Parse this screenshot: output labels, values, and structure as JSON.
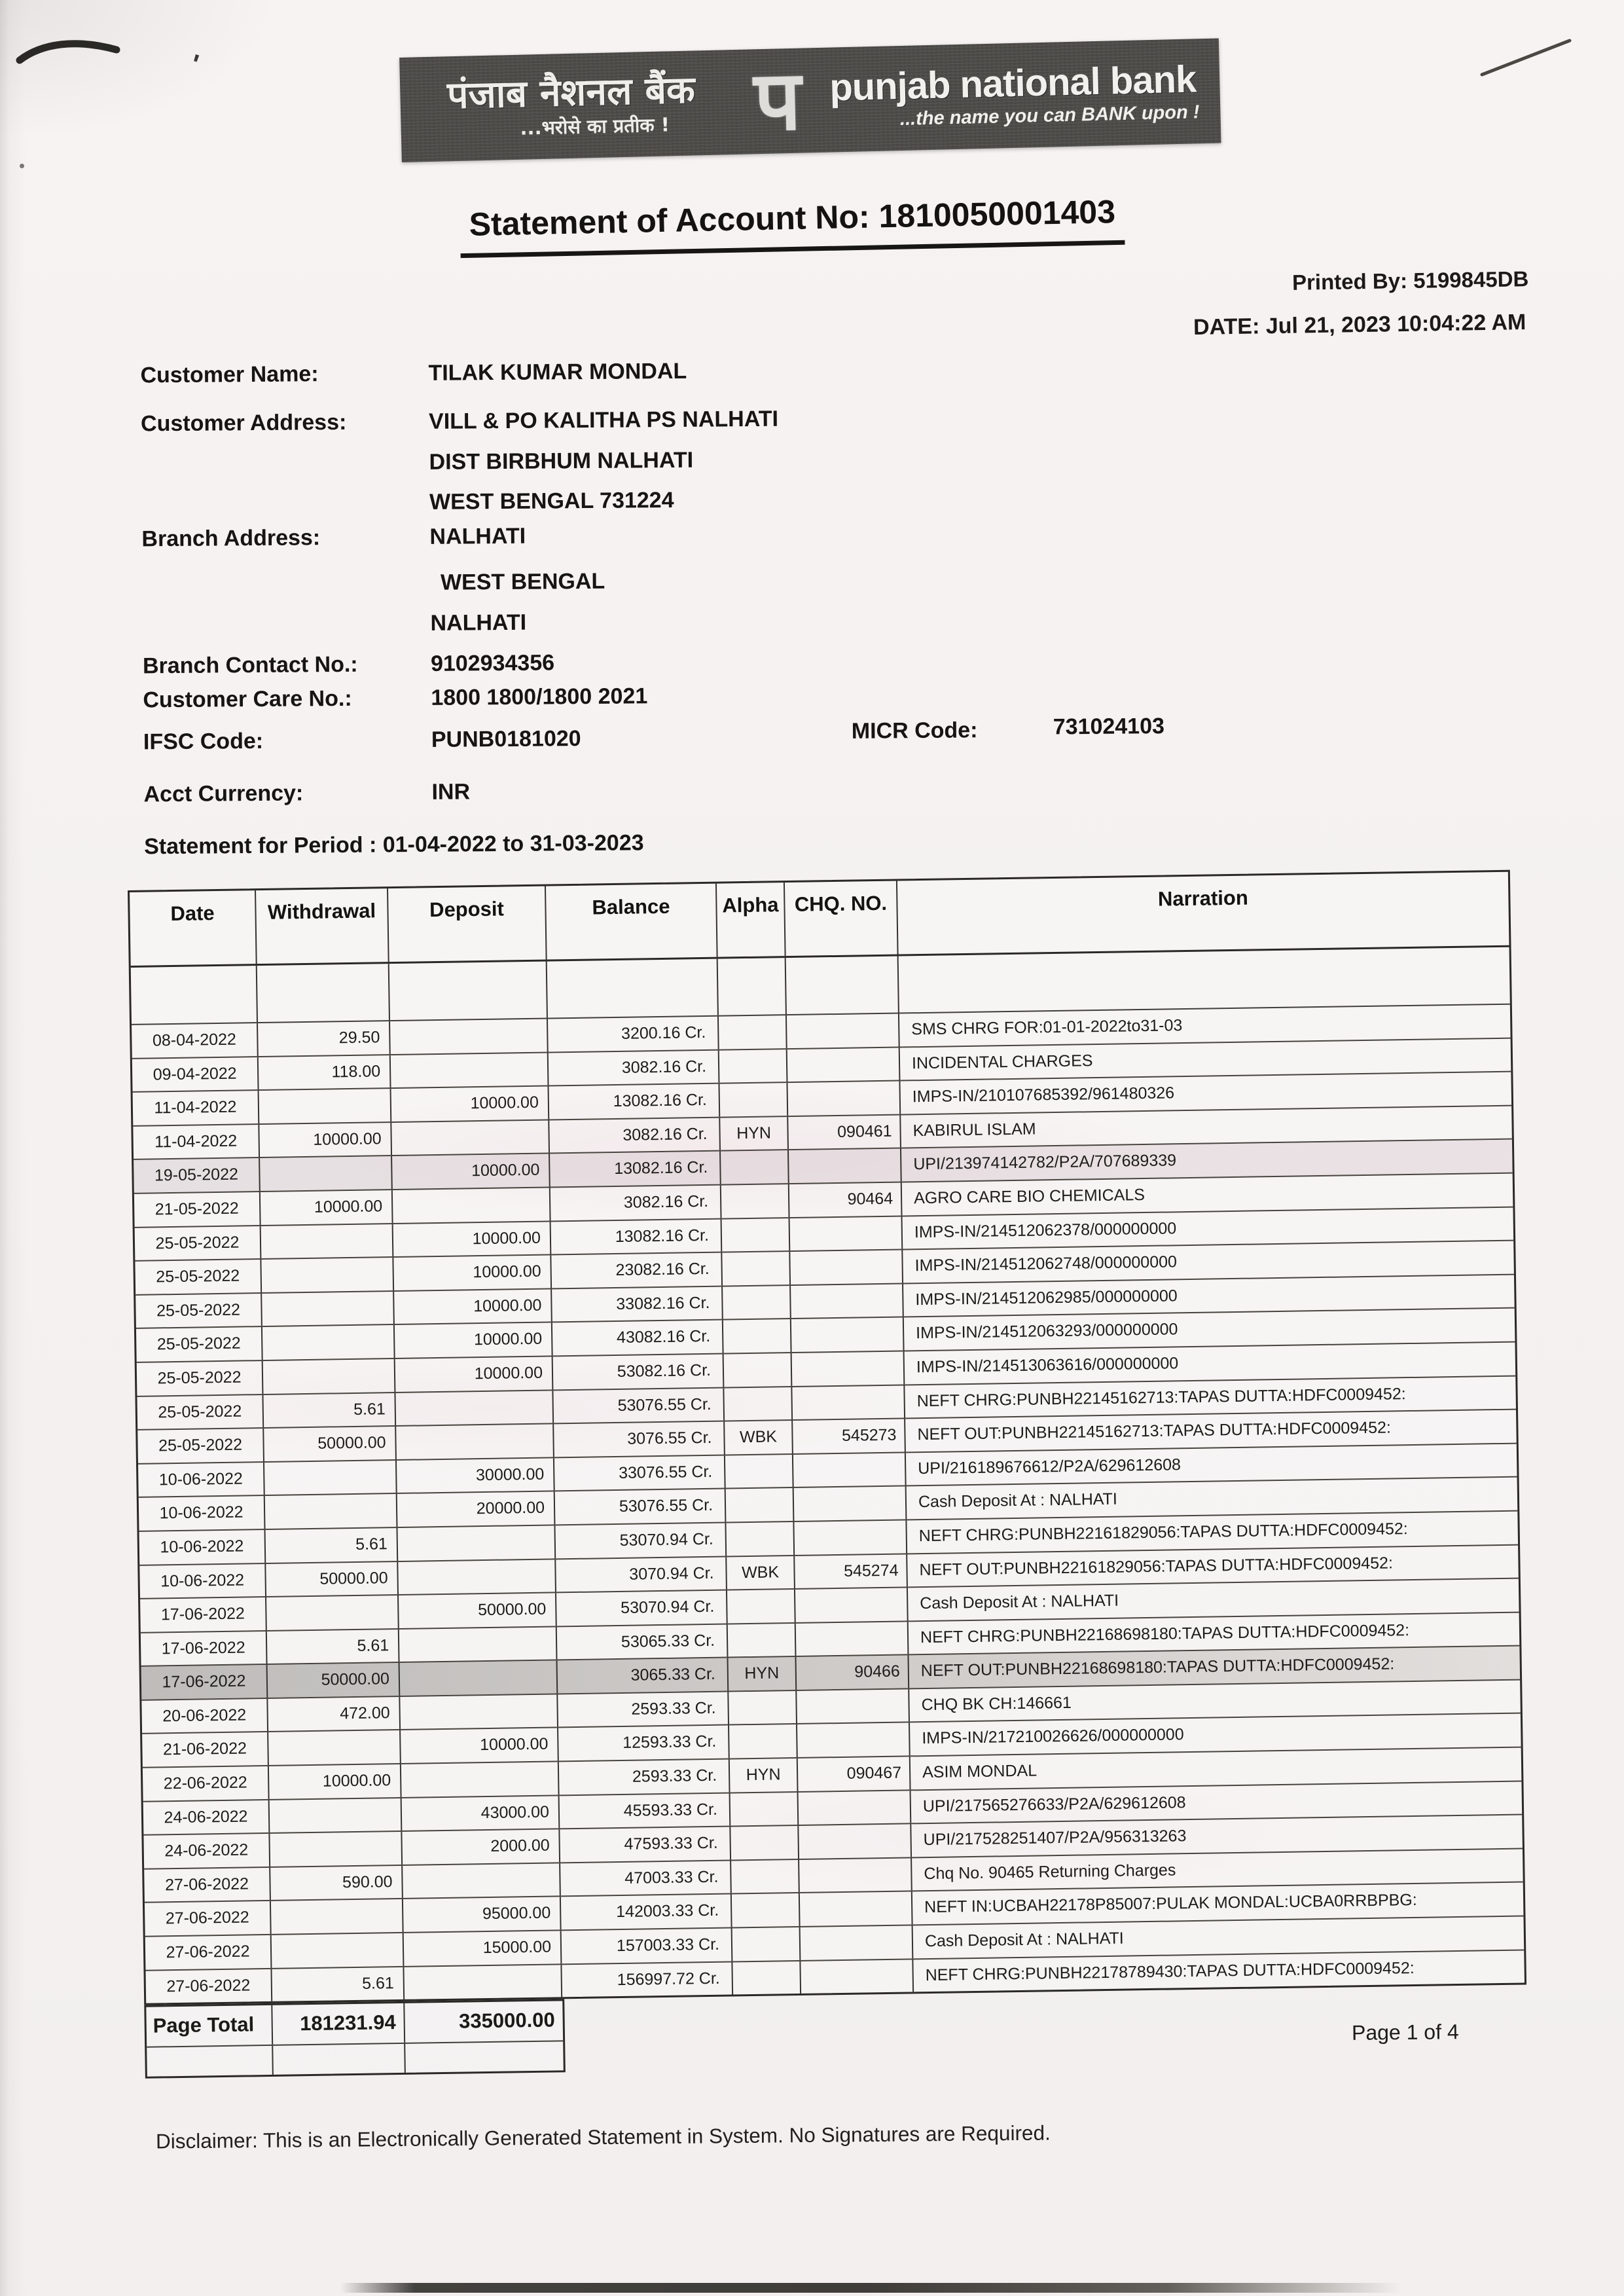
{
  "bank_banner": {
    "name_hindi": "पंजाब नैशनल बैंक",
    "tagline_hindi": "...भरोसे का प्रतीक !",
    "logo_glyph": "प",
    "name_english": "punjab national bank",
    "tagline_english": "...the name you can BANK upon !"
  },
  "title": "Statement of Account No: 1810050001403",
  "meta": {
    "printed_by_label": "Printed By:",
    "printed_by": "5199845DB",
    "date_label": "DATE:",
    "date": "Jul 21, 2023 10:04:22 AM"
  },
  "account_info": {
    "customer_name_label": "Customer Name:",
    "customer_name": "TILAK KUMAR MONDAL",
    "customer_address_label": "Customer Address:",
    "customer_address_lines": [
      "VILL & PO KALITHA   PS NALHATI",
      "DIST BIRBHUM NALHATI",
      "WEST BENGAL 731224"
    ],
    "branch_address_label": "Branch Address:",
    "branch_address_lines": [
      "NALHATI",
      "WEST BENGAL",
      "NALHATI"
    ],
    "branch_contact_label": "Branch Contact No.:",
    "branch_contact": "9102934356",
    "customer_care_label": "Customer Care No.:",
    "customer_care": "1800 1800/1800 2021",
    "ifsc_label": "IFSC Code:",
    "ifsc": "PUNB0181020",
    "micr_label": "MICR Code:",
    "micr": "731024103",
    "currency_label": "Acct Currency:",
    "currency": "INR",
    "period_line": "Statement for Period : 01-04-2022 to 31-03-2023"
  },
  "table": {
    "headers": [
      "Date",
      "Withdrawal",
      "Deposit",
      "Balance",
      "Alpha",
      "CHQ. NO.",
      "Narration"
    ],
    "rows": [
      {
        "date": "08-04-2022",
        "withdrawal": "29.50",
        "deposit": "",
        "balance": "3200.16 Cr.",
        "alpha": "",
        "chq_no": "",
        "narration": "SMS CHRG FOR:01-01-2022to31-03",
        "shade": ""
      },
      {
        "date": "09-04-2022",
        "withdrawal": "118.00",
        "deposit": "",
        "balance": "3082.16 Cr.",
        "alpha": "",
        "chq_no": "",
        "narration": "INCIDENTAL CHARGES",
        "shade": ""
      },
      {
        "date": "11-04-2022",
        "withdrawal": "",
        "deposit": "10000.00",
        "balance": "13082.16 Cr.",
        "alpha": "",
        "chq_no": "",
        "narration": "IMPS-IN/210107685392/961480326",
        "shade": ""
      },
      {
        "date": "11-04-2022",
        "withdrawal": "10000.00",
        "deposit": "",
        "balance": "3082.16 Cr.",
        "alpha": "HYN",
        "chq_no": "090461",
        "narration": "KABIRUL ISLAM",
        "shade": ""
      },
      {
        "date": "19-05-2022",
        "withdrawal": "",
        "deposit": "10000.00",
        "balance": "13082.16 Cr.",
        "alpha": "",
        "chq_no": "",
        "narration": "UPI/213974142782/P2A/707689339",
        "shade": "light"
      },
      {
        "date": "21-05-2022",
        "withdrawal": "10000.00",
        "deposit": "",
        "balance": "3082.16 Cr.",
        "alpha": "",
        "chq_no": "90464",
        "narration": "AGRO CARE BIO CHEMICALS",
        "shade": ""
      },
      {
        "date": "25-05-2022",
        "withdrawal": "",
        "deposit": "10000.00",
        "balance": "13082.16 Cr.",
        "alpha": "",
        "chq_no": "",
        "narration": "IMPS-IN/214512062378/000000000",
        "shade": ""
      },
      {
        "date": "25-05-2022",
        "withdrawal": "",
        "deposit": "10000.00",
        "balance": "23082.16 Cr.",
        "alpha": "",
        "chq_no": "",
        "narration": "IMPS-IN/214512062748/000000000",
        "shade": ""
      },
      {
        "date": "25-05-2022",
        "withdrawal": "",
        "deposit": "10000.00",
        "balance": "33082.16 Cr.",
        "alpha": "",
        "chq_no": "",
        "narration": "IMPS-IN/214512062985/000000000",
        "shade": ""
      },
      {
        "date": "25-05-2022",
        "withdrawal": "",
        "deposit": "10000.00",
        "balance": "43082.16 Cr.",
        "alpha": "",
        "chq_no": "",
        "narration": "IMPS-IN/214512063293/000000000",
        "shade": ""
      },
      {
        "date": "25-05-2022",
        "withdrawal": "",
        "deposit": "10000.00",
        "balance": "53082.16 Cr.",
        "alpha": "",
        "chq_no": "",
        "narration": "IMPS-IN/214513063616/000000000",
        "shade": ""
      },
      {
        "date": "25-05-2022",
        "withdrawal": "5.61",
        "deposit": "",
        "balance": "53076.55 Cr.",
        "alpha": "",
        "chq_no": "",
        "narration": "NEFT CHRG:PUNBH22145162713:TAPAS DUTTA:HDFC0009452:",
        "shade": ""
      },
      {
        "date": "25-05-2022",
        "withdrawal": "50000.00",
        "deposit": "",
        "balance": "3076.55 Cr.",
        "alpha": "WBK",
        "chq_no": "545273",
        "narration": "NEFT OUT:PUNBH22145162713:TAPAS DUTTA:HDFC0009452:",
        "shade": ""
      },
      {
        "date": "10-06-2022",
        "withdrawal": "",
        "deposit": "30000.00",
        "balance": "33076.55 Cr.",
        "alpha": "",
        "chq_no": "",
        "narration": "UPI/216189676612/P2A/629612608",
        "shade": ""
      },
      {
        "date": "10-06-2022",
        "withdrawal": "",
        "deposit": "20000.00",
        "balance": "53076.55 Cr.",
        "alpha": "",
        "chq_no": "",
        "narration": "Cash Deposit At : NALHATI",
        "shade": ""
      },
      {
        "date": "10-06-2022",
        "withdrawal": "5.61",
        "deposit": "",
        "balance": "53070.94 Cr.",
        "alpha": "",
        "chq_no": "",
        "narration": "NEFT CHRG:PUNBH22161829056:TAPAS DUTTA:HDFC0009452:",
        "shade": ""
      },
      {
        "date": "10-06-2022",
        "withdrawal": "50000.00",
        "deposit": "",
        "balance": "3070.94 Cr.",
        "alpha": "WBK",
        "chq_no": "545274",
        "narration": "NEFT OUT:PUNBH22161829056:TAPAS DUTTA:HDFC0009452:",
        "shade": ""
      },
      {
        "date": "17-06-2022",
        "withdrawal": "",
        "deposit": "50000.00",
        "balance": "53070.94 Cr.",
        "alpha": "",
        "chq_no": "",
        "narration": "Cash Deposit At : NALHATI",
        "shade": ""
      },
      {
        "date": "17-06-2022",
        "withdrawal": "5.61",
        "deposit": "",
        "balance": "53065.33 Cr.",
        "alpha": "",
        "chq_no": "",
        "narration": "NEFT CHRG:PUNBH22168698180:TAPAS DUTTA:HDFC0009452:",
        "shade": ""
      },
      {
        "date": "17-06-2022",
        "withdrawal": "50000.00",
        "deposit": "",
        "balance": "3065.33 Cr.",
        "alpha": "HYN",
        "chq_no": "90466",
        "narration": "NEFT OUT:PUNBH22168698180:TAPAS DUTTA:HDFC0009452:",
        "shade": "dark"
      },
      {
        "date": "20-06-2022",
        "withdrawal": "472.00",
        "deposit": "",
        "balance": "2593.33 Cr.",
        "alpha": "",
        "chq_no": "",
        "narration": "CHQ BK CH:146661",
        "shade": ""
      },
      {
        "date": "21-06-2022",
        "withdrawal": "",
        "deposit": "10000.00",
        "balance": "12593.33 Cr.",
        "alpha": "",
        "chq_no": "",
        "narration": "IMPS-IN/217210026626/000000000",
        "shade": ""
      },
      {
        "date": "22-06-2022",
        "withdrawal": "10000.00",
        "deposit": "",
        "balance": "2593.33 Cr.",
        "alpha": "HYN",
        "chq_no": "090467",
        "narration": "ASIM MONDAL",
        "shade": ""
      },
      {
        "date": "24-06-2022",
        "withdrawal": "",
        "deposit": "43000.00",
        "balance": "45593.33 Cr.",
        "alpha": "",
        "chq_no": "",
        "narration": "UPI/217565276633/P2A/629612608",
        "shade": ""
      },
      {
        "date": "24-06-2022",
        "withdrawal": "",
        "deposit": "2000.00",
        "balance": "47593.33 Cr.",
        "alpha": "",
        "chq_no": "",
        "narration": "UPI/217528251407/P2A/956313263",
        "shade": ""
      },
      {
        "date": "27-06-2022",
        "withdrawal": "590.00",
        "deposit": "",
        "balance": "47003.33 Cr.",
        "alpha": "",
        "chq_no": "",
        "narration": "Chq No. 90465 Returning Charges",
        "shade": ""
      },
      {
        "date": "27-06-2022",
        "withdrawal": "",
        "deposit": "95000.00",
        "balance": "142003.33 Cr.",
        "alpha": "",
        "chq_no": "",
        "narration": "NEFT IN:UCBAH22178P85007:PULAK  MONDAL:UCBA0RRBPBG:",
        "shade": ""
      },
      {
        "date": "27-06-2022",
        "withdrawal": "",
        "deposit": "15000.00",
        "balance": "157003.33 Cr.",
        "alpha": "",
        "chq_no": "",
        "narration": "Cash Deposit At : NALHATI",
        "shade": ""
      },
      {
        "date": "27-06-2022",
        "withdrawal": "5.61",
        "deposit": "",
        "balance": "156997.72 Cr.",
        "alpha": "",
        "chq_no": "",
        "narration": "NEFT CHRG:PUNBH22178789430:TAPAS DUTTA:HDFC0009452:",
        "shade": ""
      }
    ]
  },
  "page_total": {
    "label": "Page Total",
    "withdrawal": "181231.94",
    "deposit": "335000.00"
  },
  "page_indicator": "Page 1 of 4",
  "disclaimer": "Disclaimer: This is an Electronically Generated Statement in System. No Signatures are Required."
}
